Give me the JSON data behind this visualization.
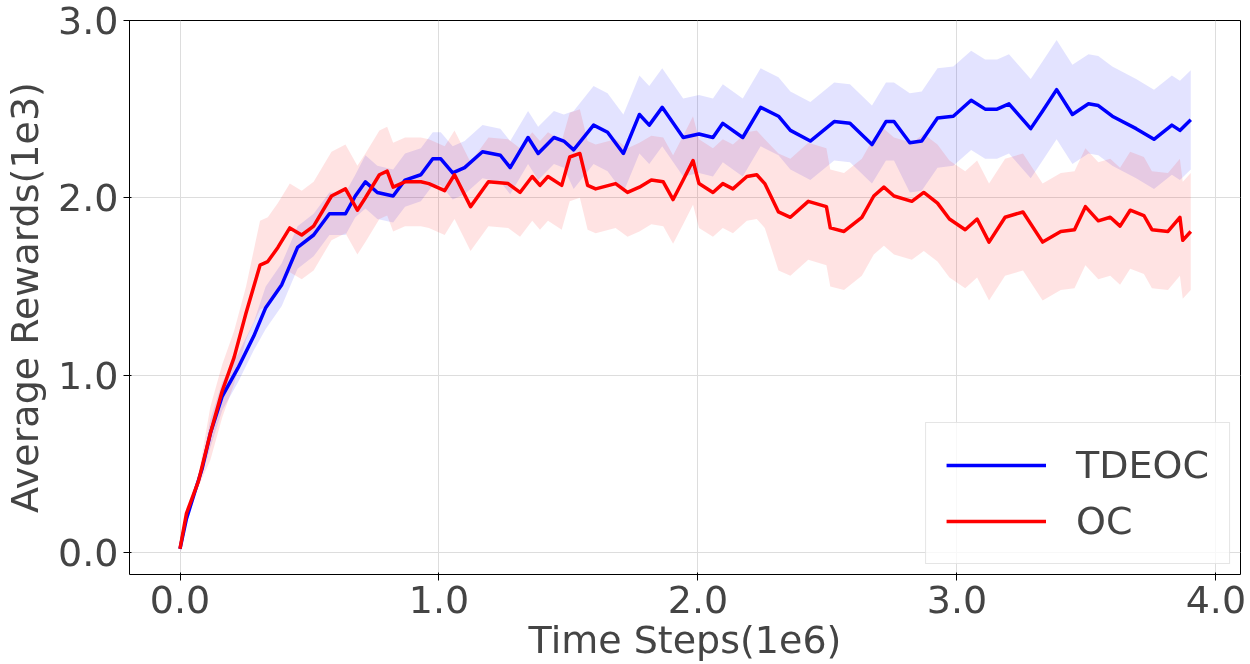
{
  "chart_data": {
    "type": "line",
    "xlabel": "Time Steps(1e6)",
    "ylabel": "Average Rewards(1e3)",
    "xlim": [
      -0.195,
      4.095
    ],
    "ylim": [
      -0.125,
      3.0
    ],
    "xticks": [
      {
        "value": 0,
        "label": "0.0"
      },
      {
        "value": 1,
        "label": "1.0"
      },
      {
        "value": 2,
        "label": "2.0"
      },
      {
        "value": 3,
        "label": "3.0"
      },
      {
        "value": 4,
        "label": "4.0"
      }
    ],
    "yticks": [
      {
        "value": 0,
        "label": "0.0"
      },
      {
        "value": 1,
        "label": "1.0"
      },
      {
        "value": 2,
        "label": "2.0"
      },
      {
        "value": 3,
        "label": "3.0"
      }
    ],
    "grid": true,
    "legend": "bottom right",
    "line_style": "solid",
    "marker": "none",
    "series": [
      {
        "name": "TDEOC",
        "color": "#0000ff",
        "x": [
          0,
          0.025,
          0.055,
          0.085,
          0.117,
          0.163,
          0.224,
          0.285,
          0.331,
          0.393,
          0.454,
          0.516,
          0.577,
          0.639,
          0.677,
          0.716,
          0.762,
          0.823,
          0.869,
          0.93,
          0.976,
          1.007,
          1.053,
          1.099,
          1.168,
          1.237,
          1.275,
          1.344,
          1.383,
          1.444,
          1.482,
          1.52,
          1.597,
          1.651,
          1.712,
          1.774,
          1.812,
          1.862,
          1.943,
          2.004,
          2.058,
          2.096,
          2.173,
          2.242,
          2.311,
          2.357,
          2.434,
          2.526,
          2.587,
          2.672,
          2.726,
          2.757,
          2.818,
          2.864,
          2.925,
          2.986,
          3.055,
          3.109,
          3.155,
          3.201,
          3.285,
          3.331,
          3.385,
          3.446,
          3.508,
          3.546,
          3.6,
          3.692,
          3.761,
          3.83,
          3.861,
          3.903
        ],
        "values": [
          0.02,
          0.19,
          0.33,
          0.47,
          0.67,
          0.88,
          1.04,
          1.22,
          1.38,
          1.51,
          1.72,
          1.79,
          1.91,
          1.91,
          2.01,
          2.09,
          2.03,
          2.01,
          2.1,
          2.13,
          2.22,
          2.22,
          2.14,
          2.17,
          2.26,
          2.24,
          2.17,
          2.34,
          2.25,
          2.34,
          2.32,
          2.27,
          2.41,
          2.37,
          2.25,
          2.47,
          2.41,
          2.51,
          2.34,
          2.36,
          2.34,
          2.42,
          2.34,
          2.51,
          2.46,
          2.38,
          2.32,
          2.43,
          2.42,
          2.3,
          2.43,
          2.43,
          2.31,
          2.32,
          2.45,
          2.46,
          2.55,
          2.5,
          2.5,
          2.53,
          2.39,
          2.49,
          2.61,
          2.47,
          2.53,
          2.52,
          2.46,
          2.39,
          2.33,
          2.41,
          2.38,
          2.44
        ],
        "lower": [
          0.0,
          0.16,
          0.3,
          0.44,
          0.59,
          0.8,
          0.96,
          1.14,
          1.26,
          1.39,
          1.6,
          1.67,
          1.79,
          1.79,
          1.89,
          1.94,
          1.88,
          1.86,
          1.95,
          1.98,
          2.07,
          2.07,
          1.99,
          2.02,
          2.11,
          2.09,
          2.02,
          2.19,
          2.1,
          2.19,
          2.17,
          2.05,
          2.19,
          2.15,
          2.03,
          2.25,
          2.19,
          2.29,
          2.12,
          2.14,
          2.12,
          2.2,
          2.12,
          2.29,
          2.24,
          2.16,
          2.1,
          2.21,
          2.2,
          2.08,
          2.21,
          2.21,
          2.03,
          2.04,
          2.17,
          2.18,
          2.27,
          2.22,
          2.22,
          2.25,
          2.11,
          2.21,
          2.33,
          2.19,
          2.25,
          2.24,
          2.18,
          2.11,
          2.05,
          2.13,
          2.1,
          2.16
        ],
        "upper": [
          0.04,
          0.22,
          0.36,
          0.5,
          0.75,
          0.96,
          1.12,
          1.3,
          1.5,
          1.63,
          1.84,
          1.91,
          2.03,
          2.03,
          2.13,
          2.24,
          2.18,
          2.16,
          2.25,
          2.28,
          2.37,
          2.37,
          2.29,
          2.32,
          2.41,
          2.39,
          2.32,
          2.49,
          2.4,
          2.49,
          2.47,
          2.49,
          2.63,
          2.59,
          2.47,
          2.69,
          2.63,
          2.73,
          2.56,
          2.58,
          2.56,
          2.64,
          2.56,
          2.73,
          2.68,
          2.6,
          2.54,
          2.65,
          2.64,
          2.52,
          2.65,
          2.65,
          2.59,
          2.6,
          2.73,
          2.74,
          2.83,
          2.78,
          2.78,
          2.81,
          2.67,
          2.77,
          2.89,
          2.75,
          2.81,
          2.8,
          2.74,
          2.67,
          2.61,
          2.69,
          2.66,
          2.72
        ]
      },
      {
        "name": "OC",
        "color": "#ff0000",
        "x": [
          0,
          0.025,
          0.071,
          0.117,
          0.163,
          0.209,
          0.255,
          0.309,
          0.339,
          0.378,
          0.424,
          0.47,
          0.516,
          0.585,
          0.639,
          0.685,
          0.716,
          0.77,
          0.8,
          0.823,
          0.869,
          0.93,
          0.961,
          1.022,
          1.06,
          1.122,
          1.191,
          1.267,
          1.313,
          1.36,
          1.39,
          1.421,
          1.474,
          1.505,
          1.544,
          1.574,
          1.605,
          1.682,
          1.728,
          1.774,
          1.82,
          1.866,
          1.904,
          1.943,
          1.981,
          2.004,
          2.058,
          2.096,
          2.135,
          2.189,
          2.227,
          2.258,
          2.311,
          2.357,
          2.426,
          2.496,
          2.511,
          2.564,
          2.633,
          2.679,
          2.718,
          2.757,
          2.826,
          2.872,
          2.925,
          2.971,
          3.032,
          3.078,
          3.124,
          3.186,
          3.255,
          3.331,
          3.401,
          3.454,
          3.496,
          3.546,
          3.592,
          3.63,
          3.669,
          3.722,
          3.753,
          3.815,
          3.861,
          3.872,
          3.903
        ],
        "values": [
          0.02,
          0.22,
          0.4,
          0.67,
          0.91,
          1.1,
          1.35,
          1.62,
          1.64,
          1.72,
          1.83,
          1.79,
          1.84,
          2.01,
          2.05,
          1.93,
          2.0,
          2.13,
          2.15,
          2.06,
          2.09,
          2.09,
          2.08,
          2.04,
          2.13,
          1.95,
          2.09,
          2.08,
          2.03,
          2.12,
          2.07,
          2.12,
          2.07,
          2.23,
          2.25,
          2.07,
          2.05,
          2.08,
          2.03,
          2.06,
          2.1,
          2.09,
          1.99,
          2.1,
          2.21,
          2.08,
          2.03,
          2.08,
          2.05,
          2.12,
          2.13,
          2.08,
          1.92,
          1.89,
          1.98,
          1.95,
          1.83,
          1.81,
          1.89,
          2.01,
          2.06,
          2.01,
          1.98,
          2.03,
          1.97,
          1.88,
          1.82,
          1.88,
          1.75,
          1.89,
          1.92,
          1.75,
          1.81,
          1.82,
          1.95,
          1.87,
          1.89,
          1.84,
          1.93,
          1.9,
          1.82,
          1.81,
          1.89,
          1.76,
          1.81
        ],
        "lower": [
          0.0,
          0.19,
          0.37,
          0.52,
          0.76,
          0.95,
          1.2,
          1.37,
          1.39,
          1.47,
          1.58,
          1.54,
          1.59,
          1.76,
          1.8,
          1.68,
          1.75,
          1.88,
          1.9,
          1.81,
          1.84,
          1.84,
          1.83,
          1.79,
          1.88,
          1.7,
          1.84,
          1.83,
          1.78,
          1.87,
          1.82,
          1.87,
          1.82,
          1.98,
          2.0,
          1.82,
          1.8,
          1.83,
          1.78,
          1.81,
          1.85,
          1.84,
          1.74,
          1.85,
          1.96,
          1.83,
          1.78,
          1.83,
          1.8,
          1.87,
          1.88,
          1.83,
          1.59,
          1.56,
          1.65,
          1.62,
          1.5,
          1.48,
          1.56,
          1.68,
          1.73,
          1.68,
          1.65,
          1.7,
          1.64,
          1.55,
          1.49,
          1.55,
          1.42,
          1.56,
          1.59,
          1.42,
          1.48,
          1.49,
          1.62,
          1.54,
          1.56,
          1.51,
          1.6,
          1.57,
          1.49,
          1.48,
          1.56,
          1.43,
          1.48
        ],
        "upper": [
          0.04,
          0.25,
          0.43,
          0.82,
          1.06,
          1.25,
          1.5,
          1.87,
          1.89,
          1.97,
          2.08,
          2.04,
          2.09,
          2.26,
          2.3,
          2.18,
          2.25,
          2.38,
          2.4,
          2.31,
          2.34,
          2.34,
          2.33,
          2.29,
          2.38,
          2.2,
          2.34,
          2.33,
          2.28,
          2.37,
          2.32,
          2.37,
          2.32,
          2.48,
          2.5,
          2.32,
          2.3,
          2.33,
          2.28,
          2.31,
          2.35,
          2.34,
          2.24,
          2.35,
          2.46,
          2.33,
          2.28,
          2.33,
          2.3,
          2.37,
          2.38,
          2.33,
          2.25,
          2.22,
          2.31,
          2.28,
          2.16,
          2.14,
          2.22,
          2.34,
          2.39,
          2.34,
          2.31,
          2.36,
          2.3,
          2.21,
          2.15,
          2.21,
          2.08,
          2.22,
          2.25,
          2.08,
          2.14,
          2.15,
          2.28,
          2.2,
          2.22,
          2.17,
          2.26,
          2.23,
          2.15,
          2.14,
          2.22,
          2.09,
          2.14
        ]
      }
    ]
  }
}
